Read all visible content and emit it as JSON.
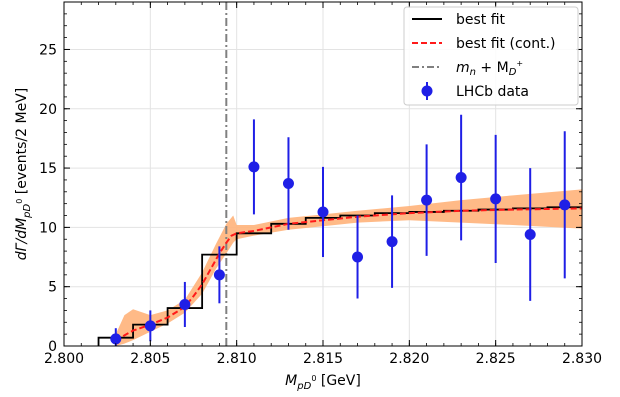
{
  "chart_data": {
    "type": "line",
    "xlabel_math": "M",
    "xlabel_sub": "pD",
    "xlabel_sup": "0",
    "xlabel_unit": "[GeV]",
    "ylabel_pre": "dΓ/dM",
    "ylabel_sub": "pD",
    "ylabel_sup": "0",
    "ylabel_unit": "[events/2 MeV]",
    "xlim": [
      2.8,
      2.83
    ],
    "ylim": [
      0,
      29
    ],
    "x_ticks": [
      2.8,
      2.805,
      2.81,
      2.815,
      2.82,
      2.825,
      2.83
    ],
    "x_tick_labels": [
      "2.800",
      "2.805",
      "2.810",
      "2.815",
      "2.820",
      "2.825",
      "2.830"
    ],
    "y_ticks": [
      0,
      5,
      10,
      15,
      20,
      25
    ],
    "y_tick_labels": [
      "0",
      "5",
      "10",
      "15",
      "20",
      "25"
    ],
    "grid": true,
    "legend_position": "top-right",
    "threshold": {
      "name": "m_n + M_{D^+}",
      "label_main": "m",
      "label_n": "n",
      "label_plus": " + M",
      "label_D": "D",
      "label_Dsup": "+",
      "x": 2.8094,
      "color": "#808080"
    },
    "series": [
      {
        "name": "best fit",
        "style": "step",
        "color": "#000000",
        "edges": [
          2.802,
          2.804,
          2.806,
          2.808,
          2.81,
          2.812,
          2.814,
          2.816,
          2.818,
          2.82,
          2.822,
          2.824,
          2.826,
          2.828,
          2.83
        ],
        "values": [
          0.7,
          1.8,
          3.2,
          7.7,
          9.5,
          10.3,
          10.8,
          11.0,
          11.2,
          11.3,
          11.4,
          11.5,
          11.6,
          11.7
        ]
      },
      {
        "name": "best fit (cont.)",
        "style": "dashed",
        "color": "#ff1a1a",
        "x": [
          2.803,
          2.8035,
          2.804,
          2.805,
          2.806,
          2.807,
          2.8075,
          2.808,
          2.8085,
          2.809,
          2.8094,
          2.8097,
          2.81,
          2.811,
          2.812,
          2.813,
          2.815,
          2.817,
          2.82,
          2.823,
          2.826,
          2.83
        ],
        "y": [
          0.4,
          0.9,
          1.3,
          1.8,
          2.4,
          3.3,
          4.2,
          5.2,
          6.5,
          7.8,
          8.7,
          9.3,
          9.5,
          9.7,
          10.0,
          10.3,
          10.6,
          10.9,
          11.2,
          11.4,
          11.5,
          11.6
        ]
      },
      {
        "name": "best fit band",
        "style": "band",
        "color": "#ffb27a",
        "x": [
          2.803,
          2.8035,
          2.804,
          2.805,
          2.806,
          2.807,
          2.808,
          2.8088,
          2.8094,
          2.8098,
          2.81,
          2.811,
          2.813,
          2.815,
          2.817,
          2.82,
          2.823,
          2.826,
          2.83
        ],
        "lower": [
          0.0,
          0.2,
          0.5,
          1.2,
          1.9,
          2.8,
          4.4,
          6.5,
          7.8,
          8.7,
          9.0,
          9.3,
          9.8,
          10.1,
          10.4,
          10.6,
          10.4,
          10.2,
          9.9
        ],
        "upper": [
          1.0,
          2.6,
          3.1,
          2.6,
          3.0,
          3.9,
          6.2,
          8.6,
          10.3,
          11.0,
          10.2,
          10.2,
          10.8,
          11.1,
          11.4,
          11.8,
          12.3,
          12.7,
          13.2
        ]
      },
      {
        "name": "LHCb data",
        "style": "errorbar",
        "color": "#1f1fe6",
        "x": [
          2.803,
          2.805,
          2.807,
          2.809,
          2.811,
          2.813,
          2.815,
          2.817,
          2.819,
          2.821,
          2.823,
          2.825,
          2.827,
          2.829
        ],
        "y": [
          0.6,
          1.7,
          3.5,
          6.0,
          15.1,
          13.7,
          11.3,
          7.5,
          8.8,
          12.3,
          14.2,
          12.4,
          9.4,
          11.9
        ],
        "yerr": [
          0.9,
          1.3,
          1.9,
          2.4,
          4.0,
          3.9,
          3.8,
          3.5,
          3.9,
          4.7,
          5.3,
          5.4,
          5.6,
          6.2
        ]
      }
    ]
  }
}
